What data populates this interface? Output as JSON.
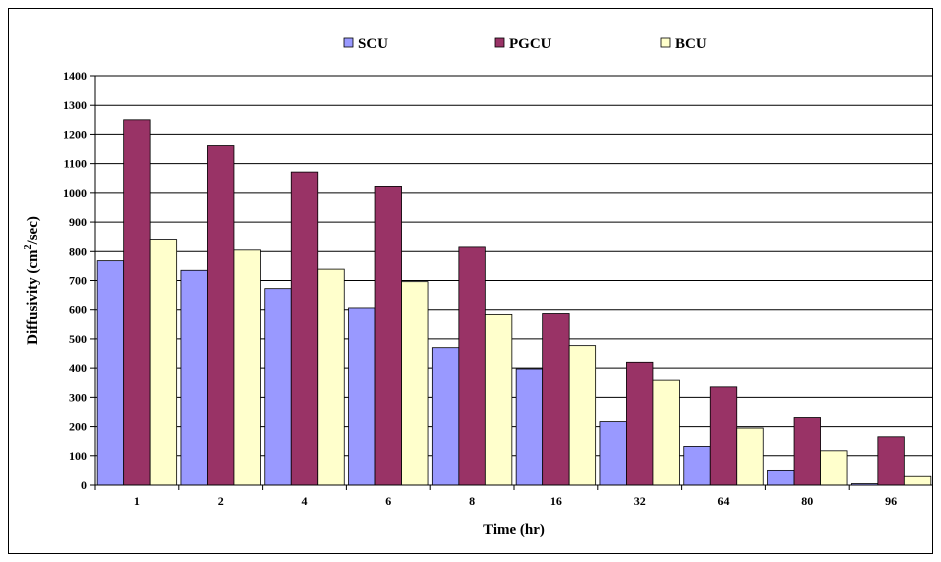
{
  "chart_data": {
    "type": "bar",
    "title": "",
    "xlabel": "Time (hr)",
    "ylabel": "Diffusivity (cm",
    "ylabel_superscript": "2",
    "ylabel_suffix": "/sec)",
    "categories": [
      "1",
      "2",
      "4",
      "6",
      "8",
      "16",
      "32",
      "64",
      "80",
      "96"
    ],
    "ylim": [
      0,
      1400
    ],
    "yticks": [
      0,
      100,
      200,
      300,
      400,
      500,
      600,
      700,
      800,
      900,
      1000,
      1100,
      1200,
      1300,
      1400
    ],
    "grid": true,
    "legend_position": "top",
    "series": [
      {
        "name": "SCU",
        "color": "#9999ff",
        "values": [
          768,
          735,
          672,
          606,
          470,
          397,
          217,
          132,
          50,
          5
        ]
      },
      {
        "name": "PGCU",
        "color": "#993366",
        "values": [
          1250,
          1162,
          1071,
          1022,
          815,
          587,
          420,
          336,
          231,
          165
        ]
      },
      {
        "name": "BCU",
        "color": "#ffffcc",
        "values": [
          840,
          805,
          739,
          696,
          584,
          477,
          359,
          195,
          117,
          30
        ]
      }
    ]
  }
}
